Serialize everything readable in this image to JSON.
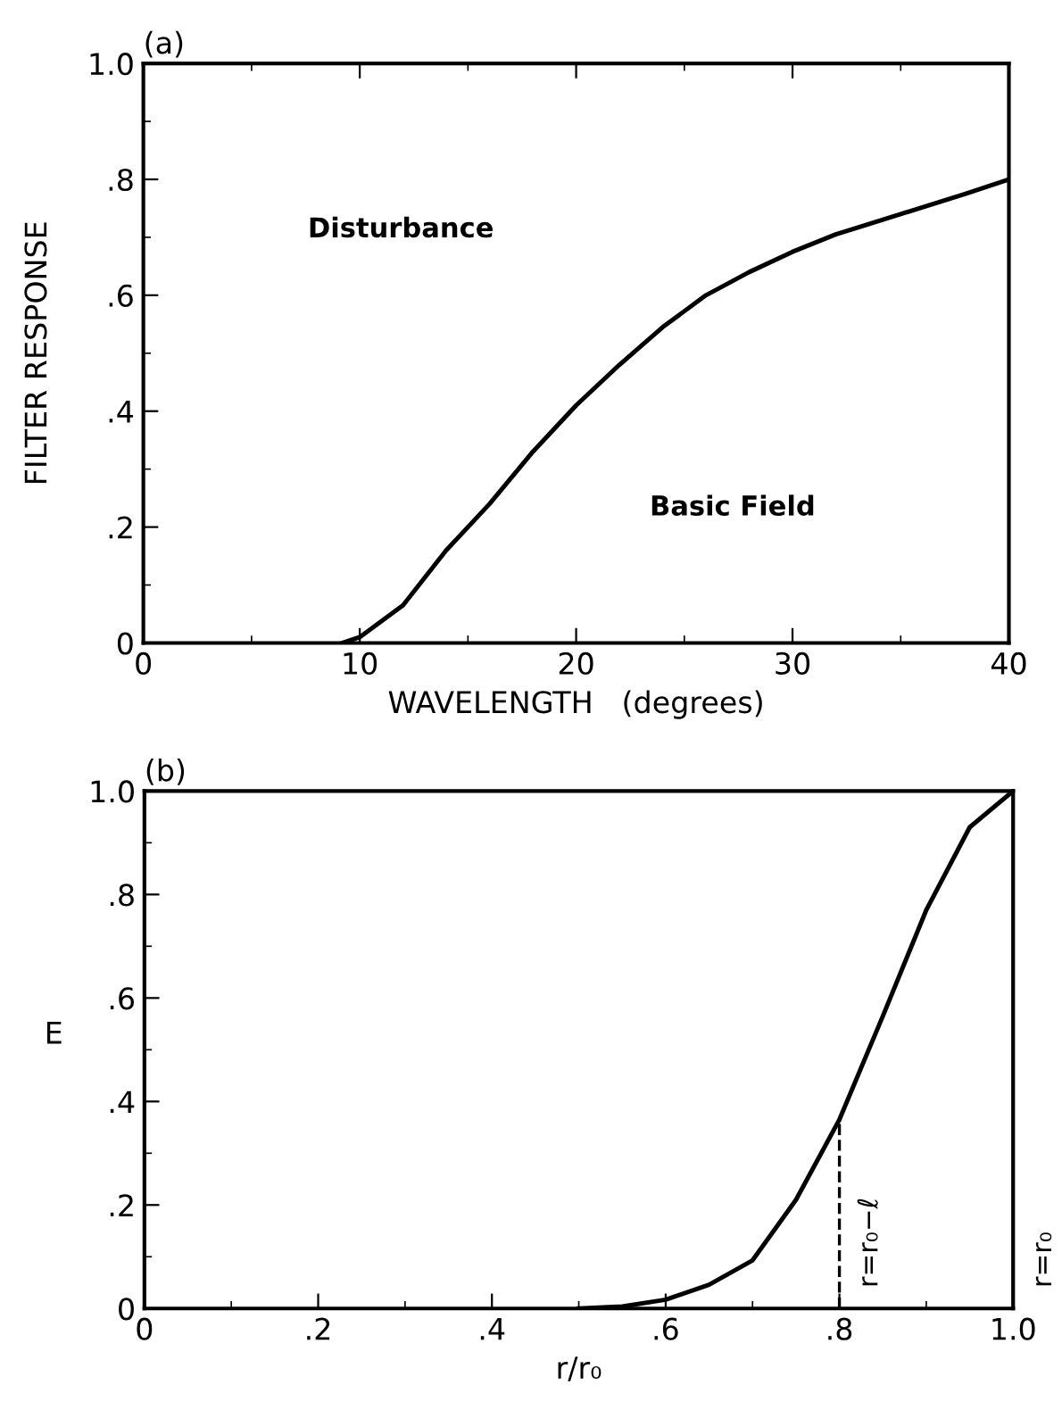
{
  "chart_data": [
    {
      "type": "line",
      "title": "(a)",
      "xlabel": "WAVELENGTH   (degrees)",
      "ylabel": "FILTER RESPONSE",
      "x": [
        9.2,
        10,
        12,
        14,
        16,
        18,
        20,
        22,
        24,
        26,
        28,
        30,
        32,
        35,
        38,
        40
      ],
      "series": [
        {
          "color": "#000000",
          "values": [
            0,
            0.01,
            0.065,
            0.16,
            0.24,
            0.33,
            0.41,
            0.48,
            0.545,
            0.6,
            0.64,
            0.675,
            0.705,
            0.74,
            0.775,
            0.8
          ]
        }
      ],
      "xlim": [
        0,
        40
      ],
      "ylim": [
        0,
        1.0
      ],
      "xticks": [
        0,
        10,
        20,
        30,
        40
      ],
      "yticks": [
        0,
        {
          "value": 0.2,
          "label": ".2"
        },
        {
          "value": 0.4,
          "label": ".4"
        },
        {
          "value": 0.6,
          "label": ".6"
        },
        {
          "value": 0.8,
          "label": ".8"
        },
        {
          "value": 1.0,
          "label": "1.0"
        }
      ],
      "annotations": [
        "Disturbance",
        "Basic Field"
      ],
      "grid": false,
      "legend": false,
      "line_style": "solid"
    },
    {
      "type": "line",
      "title": "(b)",
      "xlabel": "r/r₀",
      "ylabel": "E",
      "x": [
        0.5,
        0.55,
        0.6,
        0.65,
        0.7,
        0.75,
        0.8,
        0.85,
        0.9,
        0.95,
        1.0
      ],
      "series": [
        {
          "color": "#000000",
          "values": [
            0,
            0.004,
            0.017,
            0.046,
            0.093,
            0.21,
            0.365,
            0.565,
            0.77,
            0.93,
            1.0
          ]
        }
      ],
      "xlim": [
        0,
        1.0
      ],
      "ylim": [
        0,
        1.0
      ],
      "xticks": [
        0,
        {
          "value": 0.2,
          "label": ".2"
        },
        {
          "value": 0.4,
          "label": ".4"
        },
        {
          "value": 0.6,
          "label": ".6"
        },
        {
          "value": 0.8,
          "label": ".8"
        },
        {
          "value": 1.0,
          "label": "1.0"
        }
      ],
      "yticks": [
        0,
        {
          "value": 0.2,
          "label": ".2"
        },
        {
          "value": 0.4,
          "label": ".4"
        },
        {
          "value": 0.6,
          "label": ".6"
        },
        {
          "value": 0.8,
          "label": ".8"
        },
        {
          "value": 1.0,
          "label": "1.0"
        }
      ],
      "ref_lines": [
        {
          "axis": "x",
          "value": 0.8,
          "label": "r=r₀−ℓ",
          "line_style": "dashed"
        },
        {
          "axis": "x",
          "value": 1.0,
          "label": "r=r₀",
          "line_style": "solid"
        }
      ],
      "grid": false,
      "legend": false,
      "line_style": "solid"
    }
  ]
}
